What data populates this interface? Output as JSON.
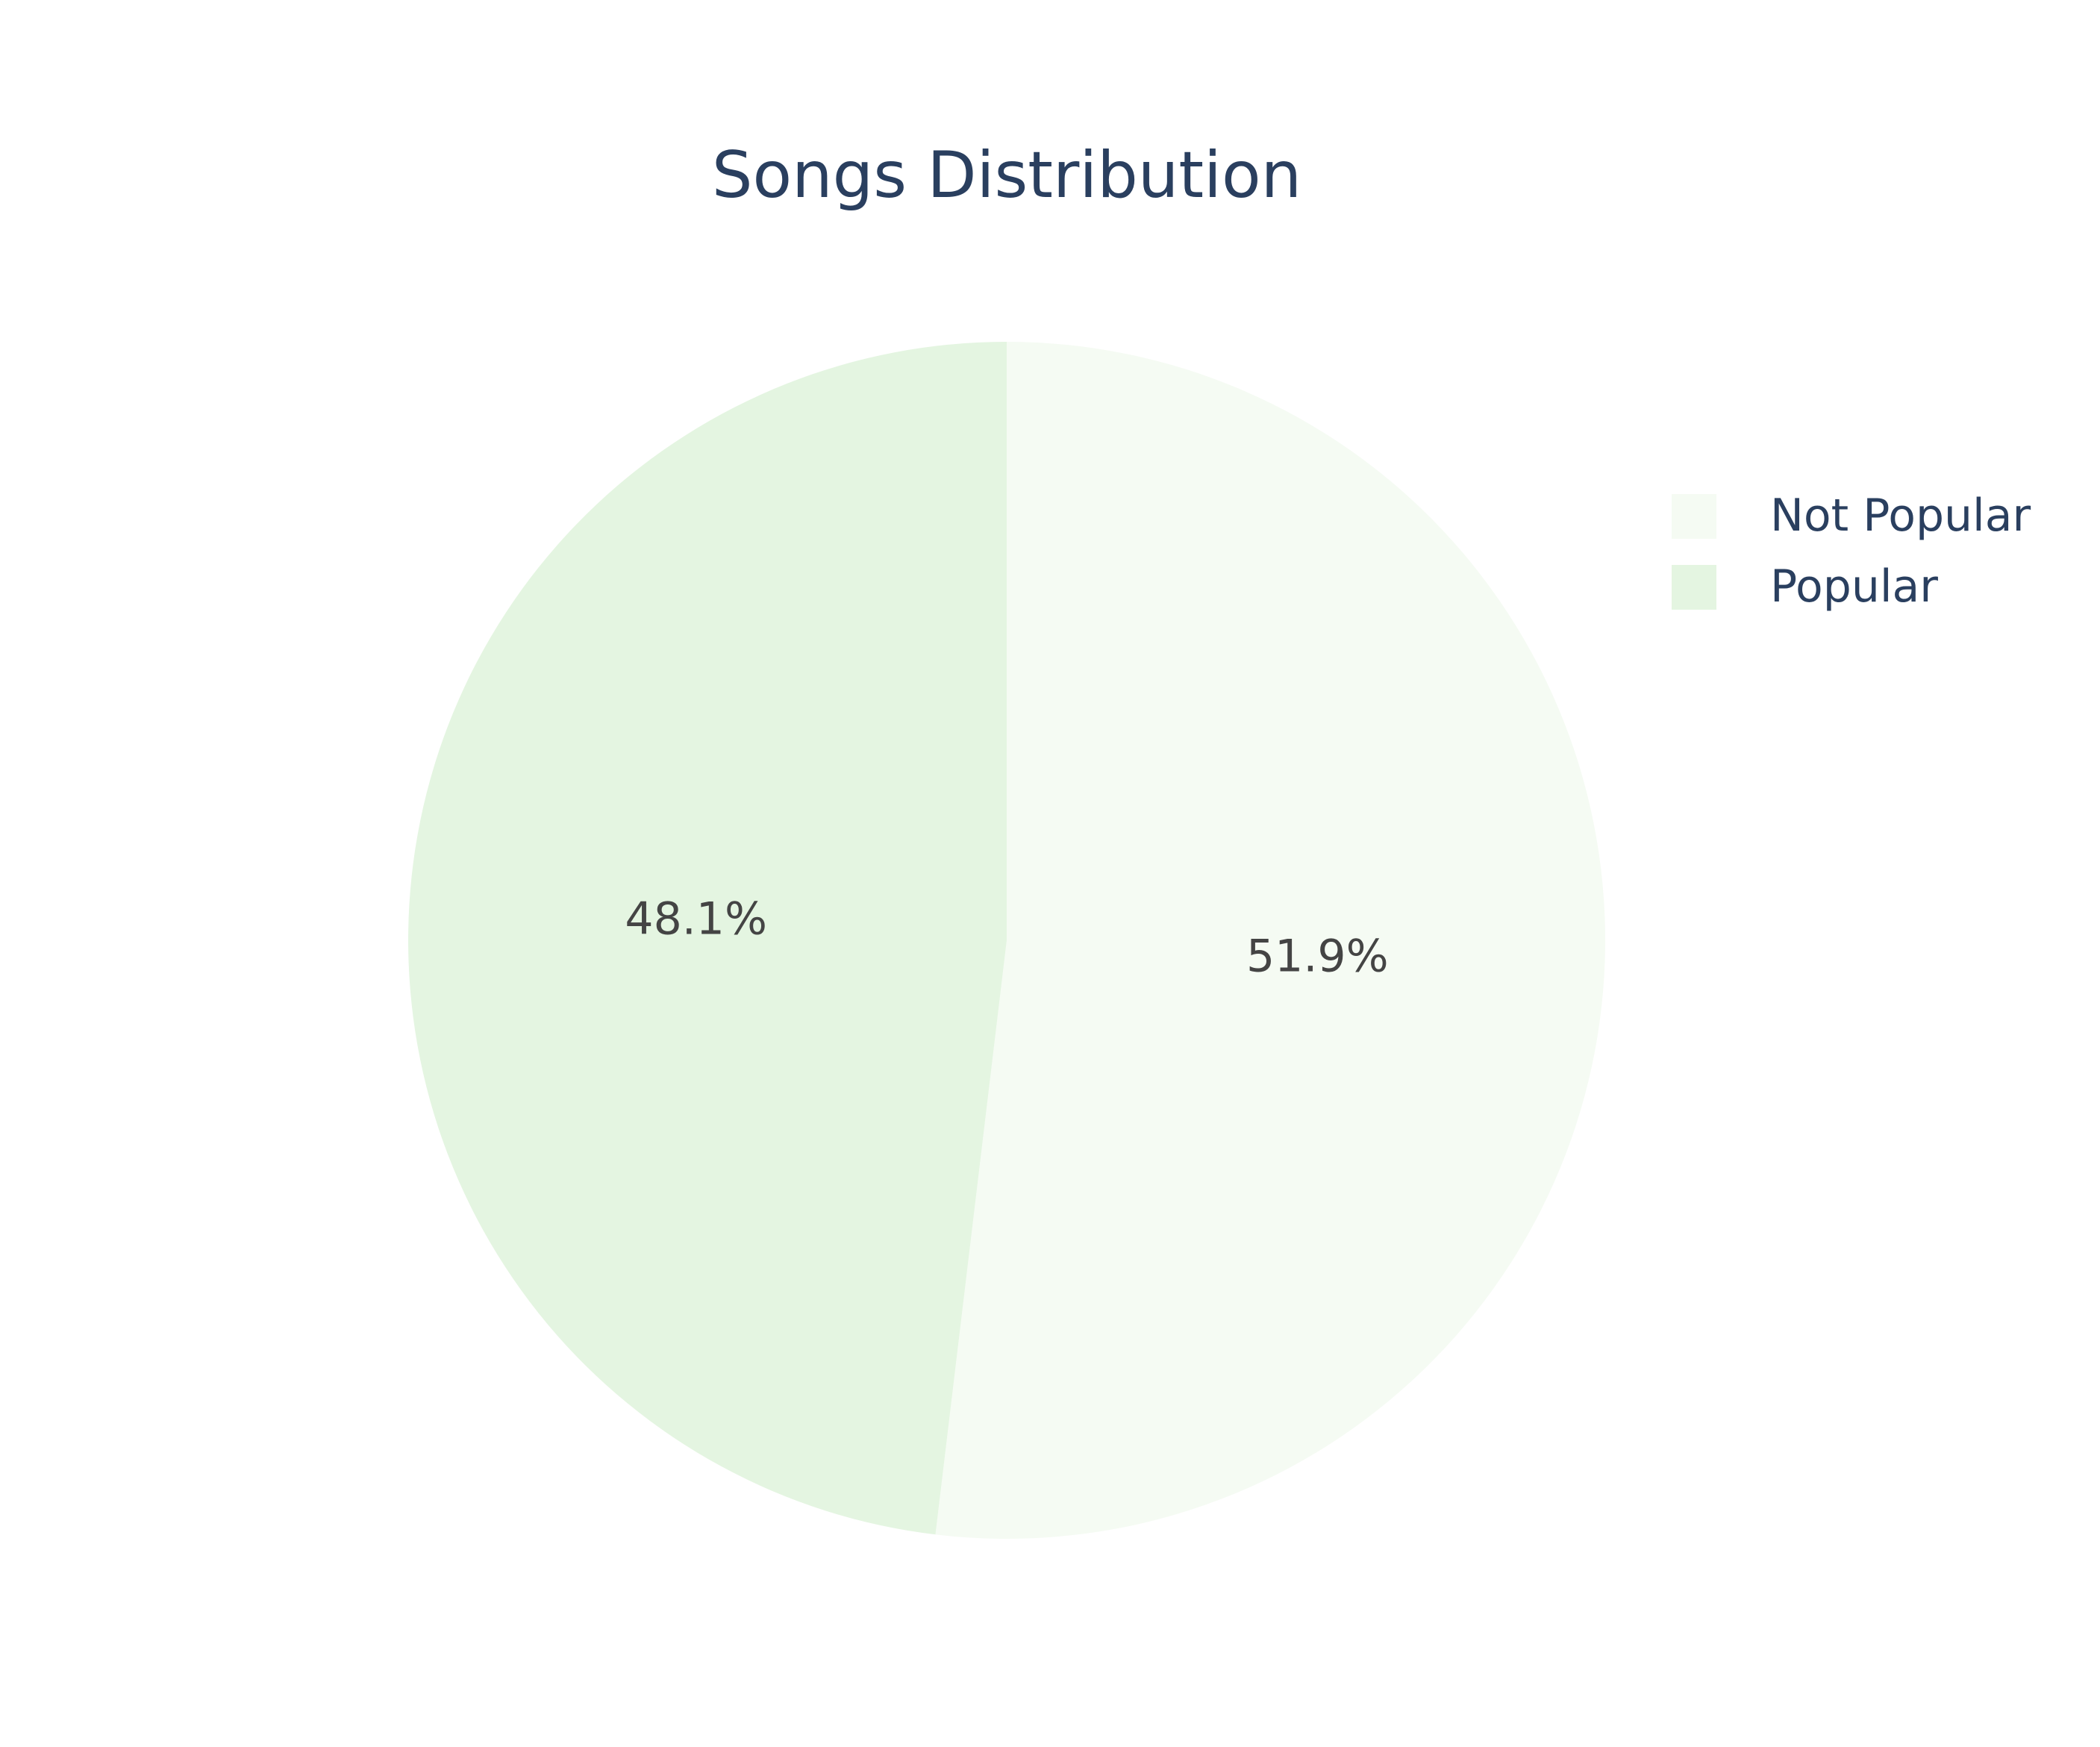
{
  "chart_data": {
    "type": "pie",
    "title": "Songs Distribution",
    "labels": [
      "Not Popular",
      "Popular"
    ],
    "values": [
      51.9,
      48.1
    ],
    "value_labels": [
      "51.9%",
      "48.1%"
    ],
    "colors": [
      "#f5fbf3",
      "#e4f5e1"
    ],
    "start_angle_deg": 90,
    "direction": "clockwise",
    "legend": {
      "position": "right",
      "entries": [
        "Not Popular",
        "Popular"
      ]
    },
    "text_color": "#2a3f5f",
    "label_color": "#444444",
    "background": "#ffffff"
  }
}
